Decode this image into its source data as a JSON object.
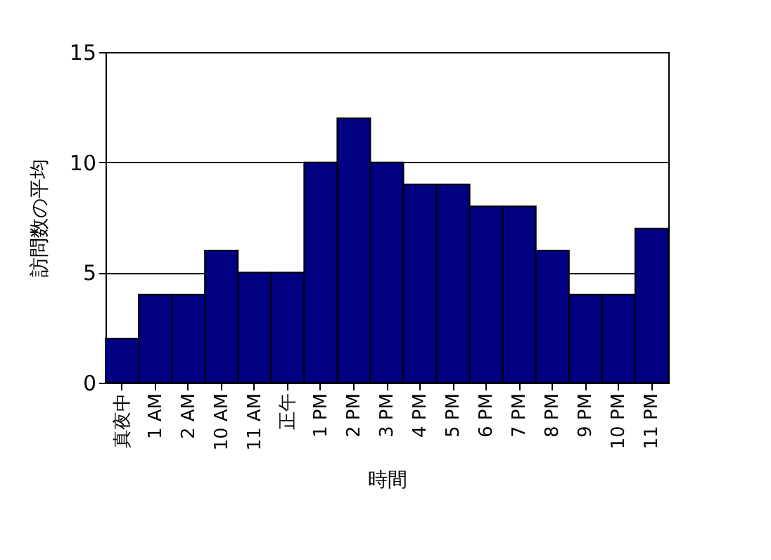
{
  "chart_data": {
    "type": "bar",
    "xlabel": "時間",
    "ylabel": "訪問数の平均",
    "categories": [
      "真夜中",
      "1 AM",
      "2 AM",
      "10 AM",
      "11 AM",
      "正午",
      "1 PM",
      "2 PM",
      "3 PM",
      "4 PM",
      "5 PM",
      "6 PM",
      "7 PM",
      "8 PM",
      "9 PM",
      "10 PM",
      "11 PM"
    ],
    "values": [
      2,
      4,
      4,
      6,
      5,
      5,
      10,
      12,
      10,
      9,
      9,
      8,
      8,
      6,
      4,
      4,
      7
    ],
    "color": "#000080",
    "ylim": [
      0,
      15
    ],
    "yticks": [
      0,
      5,
      10,
      15
    ],
    "grid": "y"
  }
}
